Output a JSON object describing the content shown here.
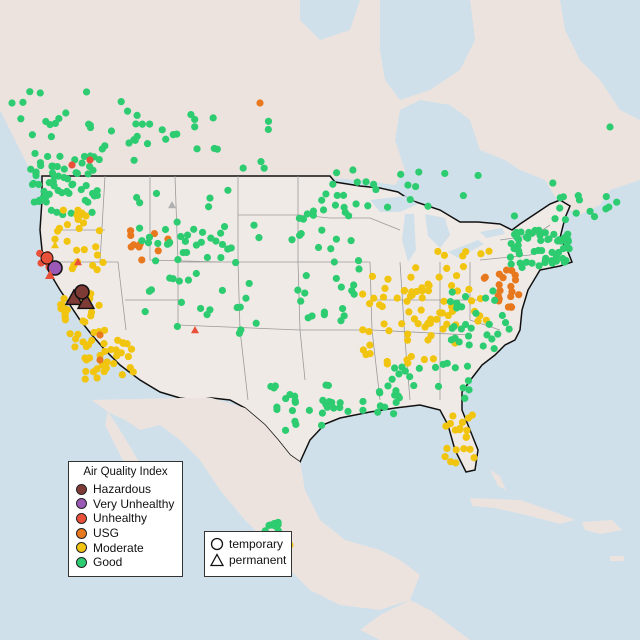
{
  "legend": {
    "title": "Air Quality Index",
    "items": [
      {
        "label": "Hazardous",
        "color": "#7e3b36"
      },
      {
        "label": "Very Unhealthy",
        "color": "#9b59b6"
      },
      {
        "label": "Unhealthy",
        "color": "#e8503a"
      },
      {
        "label": "USG",
        "color": "#e8781e"
      },
      {
        "label": "Moderate",
        "color": "#f1c40f"
      },
      {
        "label": "Good",
        "color": "#2ecc71"
      }
    ]
  },
  "type_legend": {
    "items": [
      {
        "label": "temporary",
        "shape": "circle"
      },
      {
        "label": "permanent",
        "shape": "triangle"
      }
    ]
  },
  "map": {
    "land_color": "#efe6e2",
    "water_color": "#cfe0ea",
    "us_land_color": "#efe9e5",
    "border_color": "#111111",
    "state_line_color": "#9a9a9a"
  }
}
